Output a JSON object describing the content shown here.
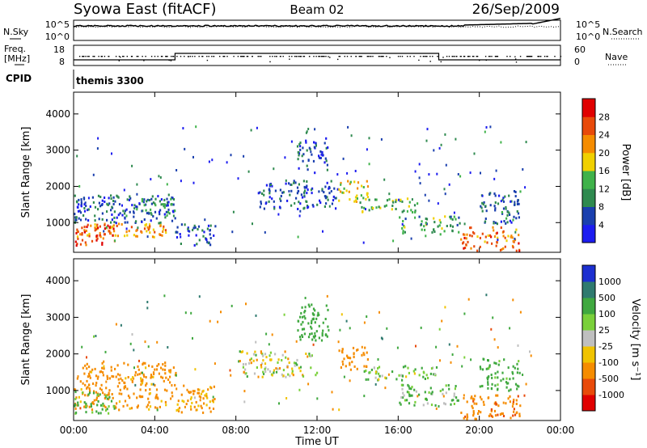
{
  "header": {
    "title": "Syowa East (fitACF)",
    "beam": "Beam 02",
    "date": "26/Sep/2009"
  },
  "panels": {
    "nsky_label": "N.Sky",
    "nsearch_label": "N.Search",
    "nsky_ticks": [
      "10^5",
      "10^0"
    ],
    "nsearch_ticks": [
      "10^5",
      "10^0"
    ],
    "freq_label_line1": "Freq.",
    "freq_label_line2": "[MHz]",
    "freq_ticks": [
      "18",
      "8"
    ],
    "nave_label": "Nave",
    "nave_ticks": [
      "60",
      "0"
    ],
    "cpid_label": "CPID",
    "cpid_value": "themis 3300"
  },
  "colors": {
    "power_scale": [
      "#1c1cf0",
      "#1a3fae",
      "#2f8a4f",
      "#3fb24a",
      "#f0d000",
      "#f58c00",
      "#e84a0a",
      "#e00000"
    ],
    "velocity_scale": [
      "#e00000",
      "#e84a0a",
      "#f58c00",
      "#f0c300",
      "#bfbfbf",
      "#7ad03a",
      "#3fa83f",
      "#2f7a6f",
      "#1c2fd0"
    ],
    "ground_scatter": "#a0a0a0"
  },
  "chart_data": [
    {
      "type": "heatmap",
      "title": "",
      "xlabel": "",
      "ylabel": "Slant Range [km]",
      "x_ticks": [
        "00:00",
        "04:00",
        "08:00",
        "12:00",
        "16:00",
        "20:00",
        "00:00"
      ],
      "xlim_hours": [
        0,
        24
      ],
      "y_ticks": [
        1000,
        2000,
        3000,
        4000
      ],
      "ylim": [
        180,
        4600
      ],
      "colorbar": {
        "label": "Power [dB]",
        "ticks": [
          4,
          8,
          12,
          16,
          20,
          24,
          28
        ],
        "range": [
          0,
          32
        ]
      },
      "regions": [
        {
          "t": [
            0.0,
            4.8
          ],
          "r": [
            600,
            1000
          ],
          "value": 22
        },
        {
          "t": [
            0.0,
            2.0
          ],
          "r": [
            400,
            1000
          ],
          "value": 26
        },
        {
          "t": [
            0.0,
            5.0
          ],
          "r": [
            1000,
            1800
          ],
          "value": 6
        },
        {
          "t": [
            3.0,
            5.0
          ],
          "r": [
            1200,
            1700
          ],
          "value": 10
        },
        {
          "t": [
            5.0,
            7.0
          ],
          "r": [
            400,
            1000
          ],
          "value": 6
        },
        {
          "t": [
            9.0,
            13.0
          ],
          "r": [
            1400,
            2200
          ],
          "value": 6
        },
        {
          "t": [
            11.0,
            12.5
          ],
          "r": [
            2400,
            3400
          ],
          "value": 6
        },
        {
          "t": [
            13.0,
            14.5
          ],
          "r": [
            1600,
            2200
          ],
          "value": 18
        },
        {
          "t": [
            14.0,
            17.0
          ],
          "r": [
            1300,
            1700
          ],
          "value": 14
        },
        {
          "t": [
            16.0,
            19.0
          ],
          "r": [
            700,
            1200
          ],
          "value": 12
        },
        {
          "t": [
            19.0,
            22.0
          ],
          "r": [
            250,
            900
          ],
          "value": 24
        },
        {
          "t": [
            20.0,
            22.0
          ],
          "r": [
            1000,
            1900
          ],
          "value": 8
        }
      ]
    },
    {
      "type": "heatmap",
      "title": "",
      "xlabel": "Time UT",
      "ylabel": "Slant Range [km]",
      "x_ticks": [
        "00:00",
        "04:00",
        "08:00",
        "12:00",
        "16:00",
        "20:00",
        "00:00"
      ],
      "xlim_hours": [
        0,
        24
      ],
      "y_ticks": [
        1000,
        2000,
        3000,
        4000
      ],
      "ylim": [
        180,
        4600
      ],
      "colorbar": {
        "label": "Velocity [m s⁻¹]",
        "ticks": [
          "1000",
          "500",
          "100",
          "25",
          "-25",
          "-100",
          "-500",
          "-1000"
        ],
        "range": [
          -1500,
          1500
        ]
      },
      "regions": [
        {
          "t": [
            0.0,
            5.0
          ],
          "r": [
            500,
            1800
          ],
          "value": -200
        },
        {
          "t": [
            0.0,
            2.0
          ],
          "r": [
            400,
            1000
          ],
          "value": 150
        },
        {
          "t": [
            5.0,
            7.0
          ],
          "r": [
            400,
            1200
          ],
          "value": -150
        },
        {
          "t": [
            8.0,
            12.0
          ],
          "r": [
            1400,
            2100
          ],
          "value": 0
        },
        {
          "t": [
            11.0,
            12.5
          ],
          "r": [
            2400,
            3400
          ],
          "value": 300
        },
        {
          "t": [
            13.0,
            14.5
          ],
          "r": [
            1600,
            2200
          ],
          "value": -250
        },
        {
          "t": [
            14.0,
            18.0
          ],
          "r": [
            1300,
            1700
          ],
          "value": 80
        },
        {
          "t": [
            16.0,
            19.0
          ],
          "r": [
            600,
            1200
          ],
          "value": 120
        },
        {
          "t": [
            19.0,
            22.0
          ],
          "r": [
            250,
            900
          ],
          "value": -400
        },
        {
          "t": [
            20.0,
            22.0
          ],
          "r": [
            1000,
            1900
          ],
          "value": 200
        }
      ]
    }
  ]
}
